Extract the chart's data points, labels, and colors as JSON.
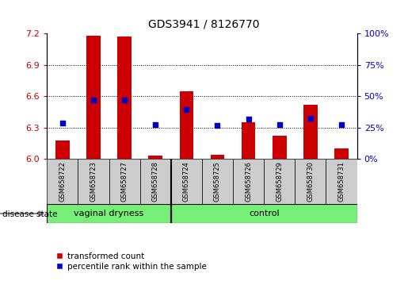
{
  "title": "GDS3941 / 8126770",
  "samples": [
    "GSM658722",
    "GSM658723",
    "GSM658727",
    "GSM658728",
    "GSM658724",
    "GSM658725",
    "GSM658726",
    "GSM658729",
    "GSM658730",
    "GSM658731"
  ],
  "red_bar_top": [
    6.175,
    7.18,
    7.17,
    6.03,
    6.65,
    6.04,
    6.35,
    6.22,
    6.52,
    6.1
  ],
  "blue_sq_val": [
    6.345,
    6.565,
    6.563,
    6.325,
    6.475,
    6.32,
    6.38,
    6.325,
    6.39,
    6.325
  ],
  "ymin": 6.0,
  "ymax": 7.2,
  "yticks_left": [
    6.0,
    6.3,
    6.6,
    6.9,
    7.2
  ],
  "yticks_right": [
    0,
    25,
    50,
    75,
    100
  ],
  "bar_color": "#cc0000",
  "blue_color": "#0000cc",
  "group_boundary": 4,
  "title_fontsize": 10,
  "legend_red": "transformed count",
  "legend_blue": "percentile rank within the sample",
  "green_color": "#77ee77",
  "gray_color": "#cccccc",
  "left_tick_color": "#cc0000",
  "right_tick_color": "#0000cc"
}
